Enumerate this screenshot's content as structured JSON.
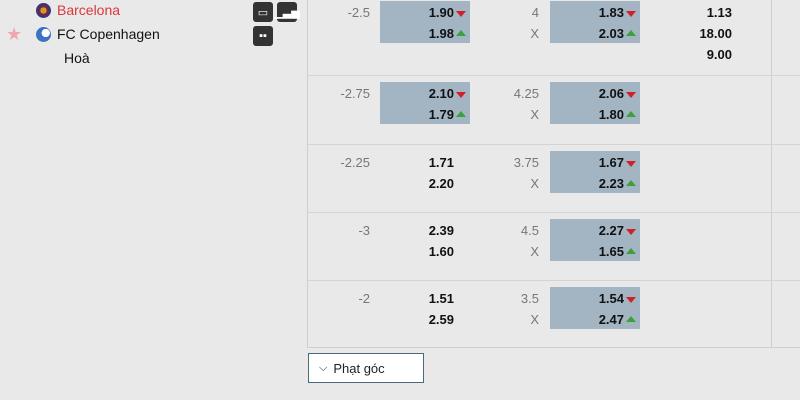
{
  "match": {
    "home": {
      "name": "Barcelona",
      "color": "#d9383e"
    },
    "away": {
      "name": "FC Copenhagen"
    },
    "draw": "Hoà",
    "icons": [
      "tv-icon",
      "stats-icon",
      "lineup-icon",
      "star-icon"
    ]
  },
  "rows": [
    {
      "handicap": "-2.5",
      "hc_home": "1.90",
      "hc_away": "1.98",
      "hc_hl": true,
      "ou_line": "4",
      "ou_x": "X",
      "ou_over": "1.83",
      "ou_under": "2.03",
      "ou_hl": true,
      "eu": [
        "1.13",
        "18.00",
        "9.00"
      ]
    },
    {
      "handicap": "-2.75",
      "hc_home": "2.10",
      "hc_away": "1.79",
      "hc_hl": true,
      "ou_line": "4.25",
      "ou_x": "X",
      "ou_over": "2.06",
      "ou_under": "1.80",
      "ou_hl": true
    },
    {
      "handicap": "-2.25",
      "hc_home": "1.71",
      "hc_away": "2.20",
      "hc_hl": false,
      "ou_line": "3.75",
      "ou_x": "X",
      "ou_over": "1.67",
      "ou_under": "2.23",
      "ou_hl": true
    },
    {
      "handicap": "-3",
      "hc_home": "2.39",
      "hc_away": "1.60",
      "hc_hl": false,
      "ou_line": "4.5",
      "ou_x": "X",
      "ou_over": "2.27",
      "ou_under": "1.65",
      "ou_hl": true
    },
    {
      "handicap": "-2",
      "hc_home": "1.51",
      "hc_away": "2.59",
      "hc_hl": false,
      "ou_line": "3.5",
      "ou_x": "X",
      "ou_over": "1.54",
      "ou_under": "2.47",
      "ou_hl": true
    }
  ],
  "colors": {
    "down": "#d0202a",
    "up": "#3aa23a",
    "highlight": "#a3b4c2"
  },
  "corner_button": {
    "label": "Phạt góc",
    "icon": "chevron-down-icon"
  }
}
